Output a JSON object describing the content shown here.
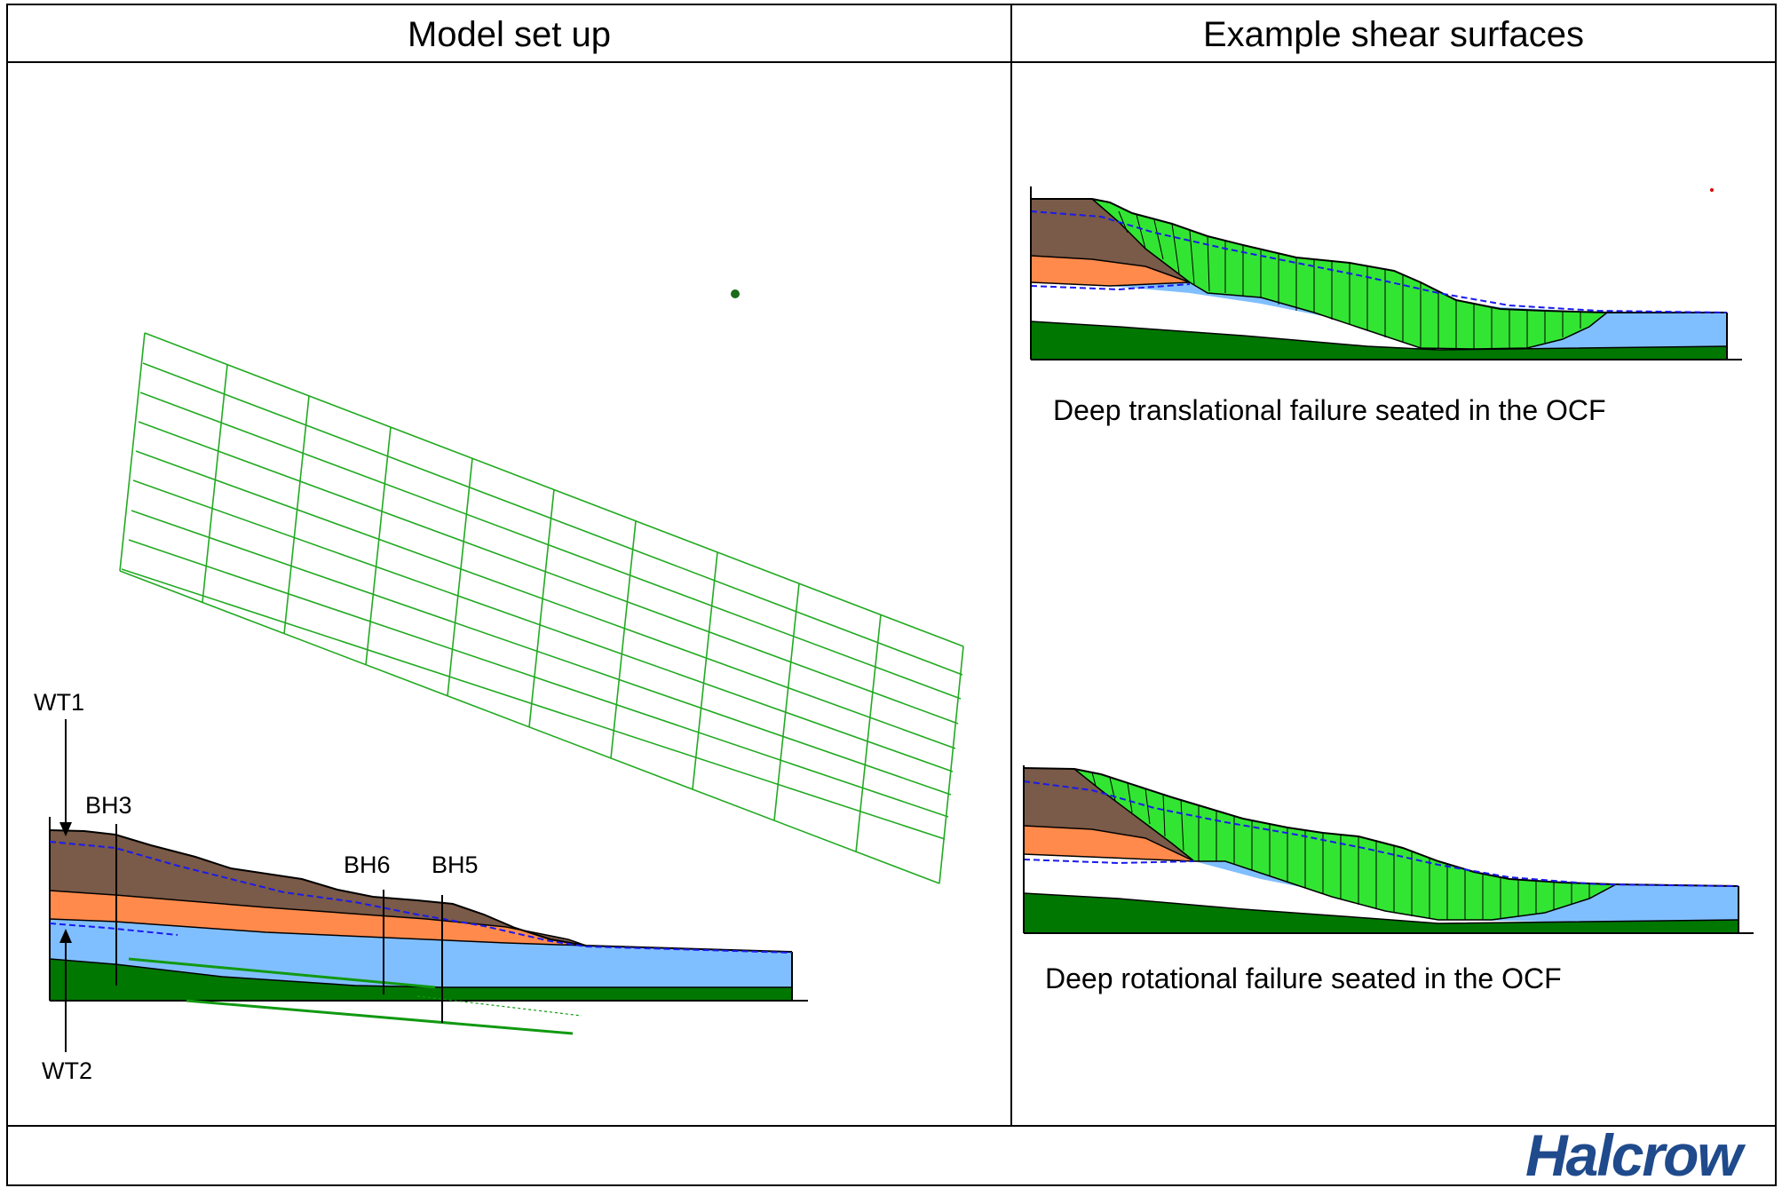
{
  "headers": {
    "left": "Model set up",
    "right": "Example shear surfaces"
  },
  "labels": {
    "wt1": "WT1",
    "wt2": "WT2",
    "bh3": "BH3",
    "bh6": "BH6",
    "bh5": "BH5"
  },
  "captions": {
    "top": "Deep translational failure seated in the OCF",
    "bottom": "Deep rotational failure seated in the OCF"
  },
  "logo": "Halcrow",
  "colors": {
    "clay_brown": "#7a5a48",
    "orange_layer": "#ff8a4c",
    "blue_layer": "#80bfff",
    "green_base": "#007700",
    "slip_green": "#33e533",
    "grid_green": "#22aa22",
    "water_table": "#1a1aee",
    "logo_blue": "#1f4a8c"
  }
}
